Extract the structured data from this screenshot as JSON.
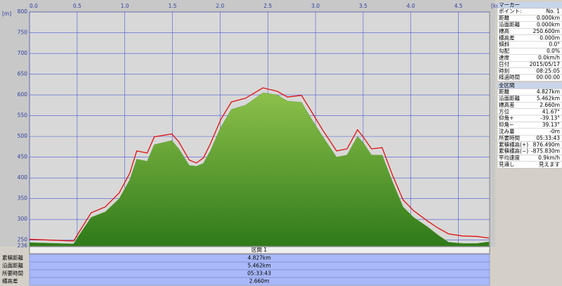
{
  "chart_data": {
    "type": "area-line",
    "x_label": "[km]",
    "y_label": "[m]",
    "xlim": [
      0,
      4.827
    ],
    "ylim": [
      236,
      800
    ],
    "xticks": [
      {
        "value": 0,
        "label": "0.0"
      },
      0.5,
      {
        "value": 1,
        "label": "1.0"
      },
      1.5,
      {
        "value": 2,
        "label": "2.0"
      },
      2.5,
      {
        "value": 3,
        "label": "3.0"
      },
      3.5,
      {
        "value": 4,
        "label": "4.0"
      },
      4.5
    ],
    "yticks": [
      236,
      250,
      300,
      350,
      400,
      450,
      500,
      550,
      600,
      650,
      700,
      750,
      800
    ],
    "grid": true,
    "x": [
      0,
      0.463,
      0.5,
      0.647,
      0.794,
      0.941,
      1.051,
      1.125,
      1.235,
      1.309,
      1.493,
      1.566,
      1.676,
      1.75,
      1.824,
      1.897,
      2.007,
      2.118,
      2.265,
      2.449,
      2.596,
      2.706,
      2.853,
      2.963,
      3.074,
      3.221,
      3.331,
      3.441,
      3.5,
      3.588,
      3.699,
      3.809,
      3.919,
      4.029,
      4.176,
      4.287,
      4.397,
      4.544,
      4.691,
      4.82
    ],
    "series": [
      {
        "color": "#5a9a2a",
        "fill": true,
        "values": [
          244,
          241,
          255,
          305,
          318,
          350,
          395,
          445,
          440,
          480,
          490,
          470,
          430,
          428,
          435,
          465,
          522,
          565,
          575,
          605,
          600,
          585,
          582,
          540,
          500,
          450,
          455,
          500,
          485,
          455,
          455,
          390,
          330,
          305,
          282,
          262,
          245,
          242,
          242,
          246
        ]
      },
      {
        "color": "#e01010",
        "fill": false,
        "values": [
          252,
          248,
          262,
          316,
          330,
          364,
          411,
          465,
          460,
          499,
          506,
          487,
          443,
          436,
          448,
          482,
          541,
          583,
          592,
          617,
          609,
          595,
          599,
          558,
          516,
          465,
          470,
          516,
          499,
          470,
          473,
          406,
          347,
          321,
          296,
          279,
          265,
          260,
          259,
          255
        ]
      }
    ]
  },
  "section": {
    "title": "区間 1",
    "rows": [
      [
        "累積距離",
        "4.827km"
      ],
      [
        "沿面距離",
        "5.462km"
      ],
      [
        "所要時間",
        "05:33:43"
      ],
      [
        "標高差",
        "2.660m"
      ]
    ]
  },
  "marker": {
    "title": "マーカー",
    "rows": [
      [
        "ポイント:",
        "No. 1"
      ],
      [
        "距離",
        "0.000km"
      ],
      [
        "沿面距離",
        "0.000km"
      ],
      [
        "標高",
        "250.600m"
      ],
      [
        "標高差",
        "0.000m"
      ],
      [
        "傾斜",
        "0.0°"
      ],
      [
        "勾配",
        "0.0%"
      ],
      [
        "速度",
        "0.0km/h"
      ],
      [
        "日付",
        "2015/05/17"
      ],
      [
        "時刻",
        "08:25:05"
      ],
      [
        "経過時間",
        "00:00:00"
      ]
    ]
  },
  "total": {
    "title": "全区間",
    "rows": [
      [
        "距離",
        "4.827km"
      ],
      [
        "沿面距離",
        "5.462km"
      ],
      [
        "標高差",
        "2.660m"
      ],
      [
        "方位",
        "41.67°"
      ],
      [
        "仰角+",
        "-39.13°"
      ],
      [
        "仰角−",
        "39.13°"
      ],
      [
        "沈み量",
        "-0m"
      ],
      [
        "所要時間",
        "05:33:43"
      ],
      [
        "累積標高(+)",
        "876.490m"
      ],
      [
        "累積標高(−)",
        "-875.830m"
      ],
      [
        "平均速度",
        "0.9km/h"
      ],
      [
        "見通し",
        "見えます"
      ]
    ]
  }
}
